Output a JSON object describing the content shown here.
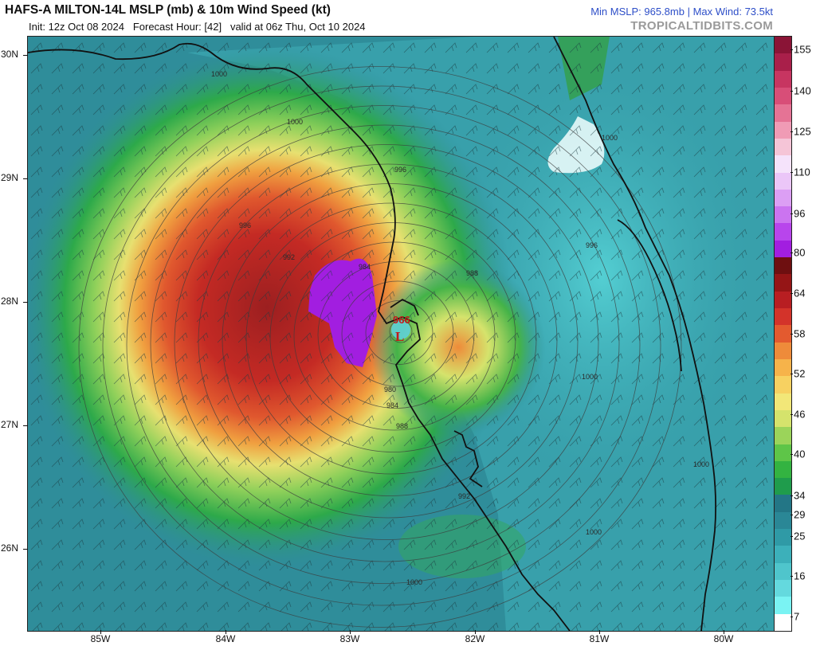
{
  "header": {
    "title": "HAFS-A MILTON-14L MSLP (mb) & 10m Wind Speed (kt)",
    "init": "Init: 12z Oct 08 2024",
    "forecast_hour": "Forecast Hour: [42]",
    "valid": "valid at 06z Thu, Oct 10 2024",
    "stats": "Min MSLP: 965.8mb | Max Wind: 73.5kt",
    "brand": "TROPICALTIDBITS.COM"
  },
  "map": {
    "lat_labels": [
      "30N",
      "29N",
      "28N",
      "27N",
      "26N"
    ],
    "lon_labels": [
      "85W",
      "84W",
      "83W",
      "82W",
      "81W",
      "80W"
    ],
    "isobar_labels": [
      "1000",
      "1000",
      "1000",
      "996",
      "996",
      "996",
      "988",
      "984",
      "980",
      "984",
      "988",
      "992",
      "992",
      "1000",
      "1000",
      "1000",
      "1000"
    ],
    "center_pressure": "966",
    "low_marker": "L",
    "storm_name": "MILTON"
  },
  "colorbar": {
    "labels": [
      "155",
      "140",
      "125",
      "110",
      "96",
      "80",
      "64",
      "58",
      "52",
      "46",
      "40",
      "34",
      "29",
      "25",
      "16",
      "7"
    ],
    "colors": [
      "#ffffff",
      "#7af3f3",
      "#64d9de",
      "#4fc5cc",
      "#3cb0ba",
      "#2f9aa6",
      "#2a8796",
      "#237686",
      "#1f9c4c",
      "#33b341",
      "#5ec548",
      "#9bd45a",
      "#d5e36c",
      "#f2e778",
      "#f7d161",
      "#f6b34a",
      "#ee8b3a",
      "#e35a2f",
      "#d3332a",
      "#b81e22",
      "#951516",
      "#6e0f10",
      "#a21ee0",
      "#b845ec",
      "#cb74f0",
      "#dc9ff4",
      "#ebc6f8",
      "#f5e3fb",
      "#f5c5d7",
      "#f09bb5",
      "#e57395",
      "#d84e78",
      "#c73561",
      "#a91f4a",
      "#8a1436"
    ],
    "coast_color": "#111111",
    "isobar_color": "#3c3c3c"
  }
}
